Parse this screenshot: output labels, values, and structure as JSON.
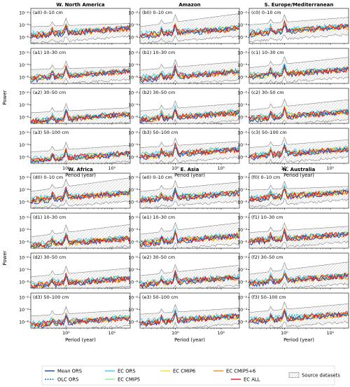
{
  "chart_data": {
    "type": "line",
    "ylabel": "Power",
    "xlabel": "Period (year)",
    "x_scale": "log",
    "y_scale": "log",
    "xlim": [
      0.17,
      25
    ],
    "ylim": [
      1e-07,
      0.05
    ],
    "x_ticks": [
      {
        "value": 1,
        "label": "10⁰"
      },
      {
        "value": 10,
        "label": "10¹"
      }
    ],
    "y_ticks": [
      {
        "value": 0.01,
        "label": "10⁻²"
      },
      {
        "value": 0.0001,
        "label": "10⁻⁴"
      },
      {
        "value": 1e-06,
        "label": "10⁻⁶"
      }
    ],
    "depths": [
      "0–10 cm",
      "10–30 cm",
      "30–50 cm",
      "50–100 cm"
    ],
    "groups": [
      {
        "regions": [
          {
            "id": "a",
            "title": "W. North America",
            "ec_level": [
              3e-05,
              1e-05,
              3e-06,
              4e-06
            ],
            "source_upper": [
              0.0001,
              3e-05,
              2e-05,
              5e-05
            ]
          },
          {
            "id": "b",
            "title": "Amazon",
            "ec_level": [
              3e-05,
              8e-06,
              6e-06,
              2e-05
            ],
            "source_upper": [
              0.004,
              0.0002,
              0.0001,
              0.0002
            ]
          },
          {
            "id": "c",
            "title": "S. Europe/Mediterranean",
            "ec_level": [
              6e-05,
              2e-05,
              8e-06,
              2e-05
            ],
            "source_upper": [
              0.001,
              0.001,
              0.0004,
              0.0004
            ]
          }
        ]
      },
      {
        "regions": [
          {
            "id": "d",
            "title": "W. Africa",
            "ec_level": [
              3e-05,
              4e-06,
              4e-06,
              5e-06
            ],
            "source_upper": [
              0.005,
              0.0004,
              0.0001,
              5e-05
            ]
          },
          {
            "id": "e",
            "title": "E. Asia",
            "ec_level": [
              3e-05,
              1e-05,
              6e-06,
              1e-05
            ],
            "source_upper": [
              0.001,
              0.0008,
              0.0003,
              0.0001
            ]
          },
          {
            "id": "f",
            "title": "N. Australia",
            "ec_level": [
              5e-05,
              2e-05,
              1e-05,
              2e-05
            ],
            "source_upper": [
              0.0002,
              0.0002,
              0.001,
              0.0005
            ]
          }
        ]
      }
    ],
    "series": [
      {
        "name": "Mean ORS",
        "color": "#1f3fa8",
        "style": "solid"
      },
      {
        "name": "OLC ORS",
        "color": "#1f6fd0",
        "style": "dashed"
      },
      {
        "name": "EC ORS",
        "color": "#3cc8e8",
        "style": "solid"
      },
      {
        "name": "EC CMIP5",
        "color": "#98e898",
        "style": "solid"
      },
      {
        "name": "EC CMIP6",
        "color": "#f2e030",
        "style": "solid"
      },
      {
        "name": "EC CMIP5+6",
        "color": "#f08c1c",
        "style": "solid"
      },
      {
        "name": "EC ALL",
        "color": "#e01b1b",
        "style": "solid"
      },
      {
        "name": "Source datasets",
        "color": "#808080",
        "style": "hatched-band"
      }
    ]
  }
}
